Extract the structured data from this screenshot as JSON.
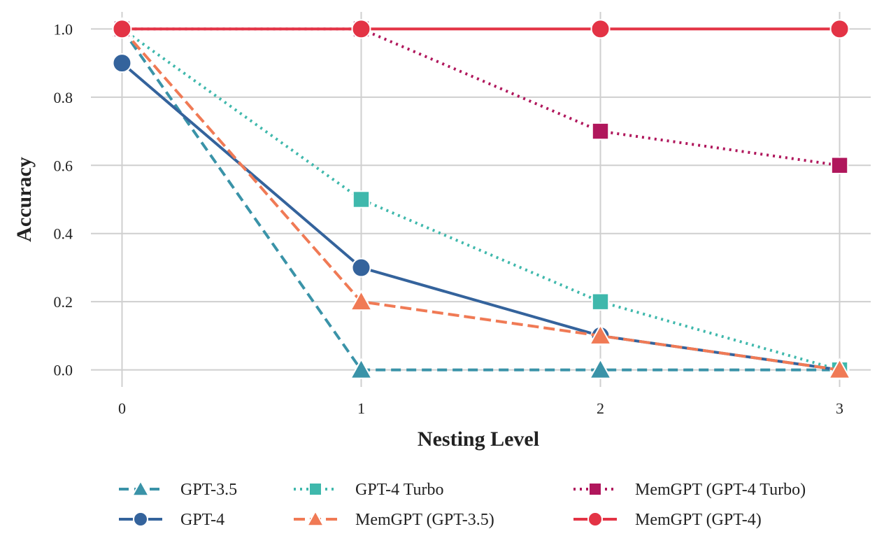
{
  "chart_data": {
    "type": "line",
    "title": "",
    "xlabel": "Nesting Level",
    "ylabel": "Accuracy",
    "x": [
      0,
      1,
      2,
      3
    ],
    "x_ticks": [
      "0",
      "1",
      "2",
      "3"
    ],
    "y_ticks": [
      "0.0",
      "0.2",
      "0.4",
      "0.6",
      "0.8",
      "1.0"
    ],
    "xlim": [
      -0.13,
      3.13
    ],
    "ylim": [
      -0.05,
      1.05
    ],
    "grid": true,
    "legend_position": "bottom",
    "series": [
      {
        "name": "GPT-3.5",
        "values": [
          1.0,
          0.0,
          0.0,
          0.0
        ],
        "color": "#3a93a8",
        "line_style": "dashed",
        "marker": "triangle"
      },
      {
        "name": "GPT-4",
        "values": [
          0.9,
          0.3,
          0.1,
          0.0
        ],
        "color": "#34639c",
        "line_style": "solid",
        "marker": "circle"
      },
      {
        "name": "GPT-4 Turbo",
        "values": [
          1.0,
          0.5,
          0.2,
          0.0
        ],
        "color": "#3fb8ac",
        "line_style": "dotted",
        "marker": "square"
      },
      {
        "name": "MemGPT (GPT-3.5)",
        "values": [
          1.0,
          0.2,
          0.1,
          0.0
        ],
        "color": "#f07a55",
        "line_style": "long-dashed",
        "marker": "triangle"
      },
      {
        "name": "MemGPT (GPT-4 Turbo)",
        "values": [
          1.0,
          1.0,
          0.7,
          0.6
        ],
        "color": "#b0175c",
        "line_style": "dotted",
        "marker": "square"
      },
      {
        "name": "MemGPT (GPT-4)",
        "values": [
          1.0,
          1.0,
          1.0,
          1.0
        ],
        "color": "#e33345",
        "line_style": "solid",
        "marker": "circle"
      }
    ]
  }
}
